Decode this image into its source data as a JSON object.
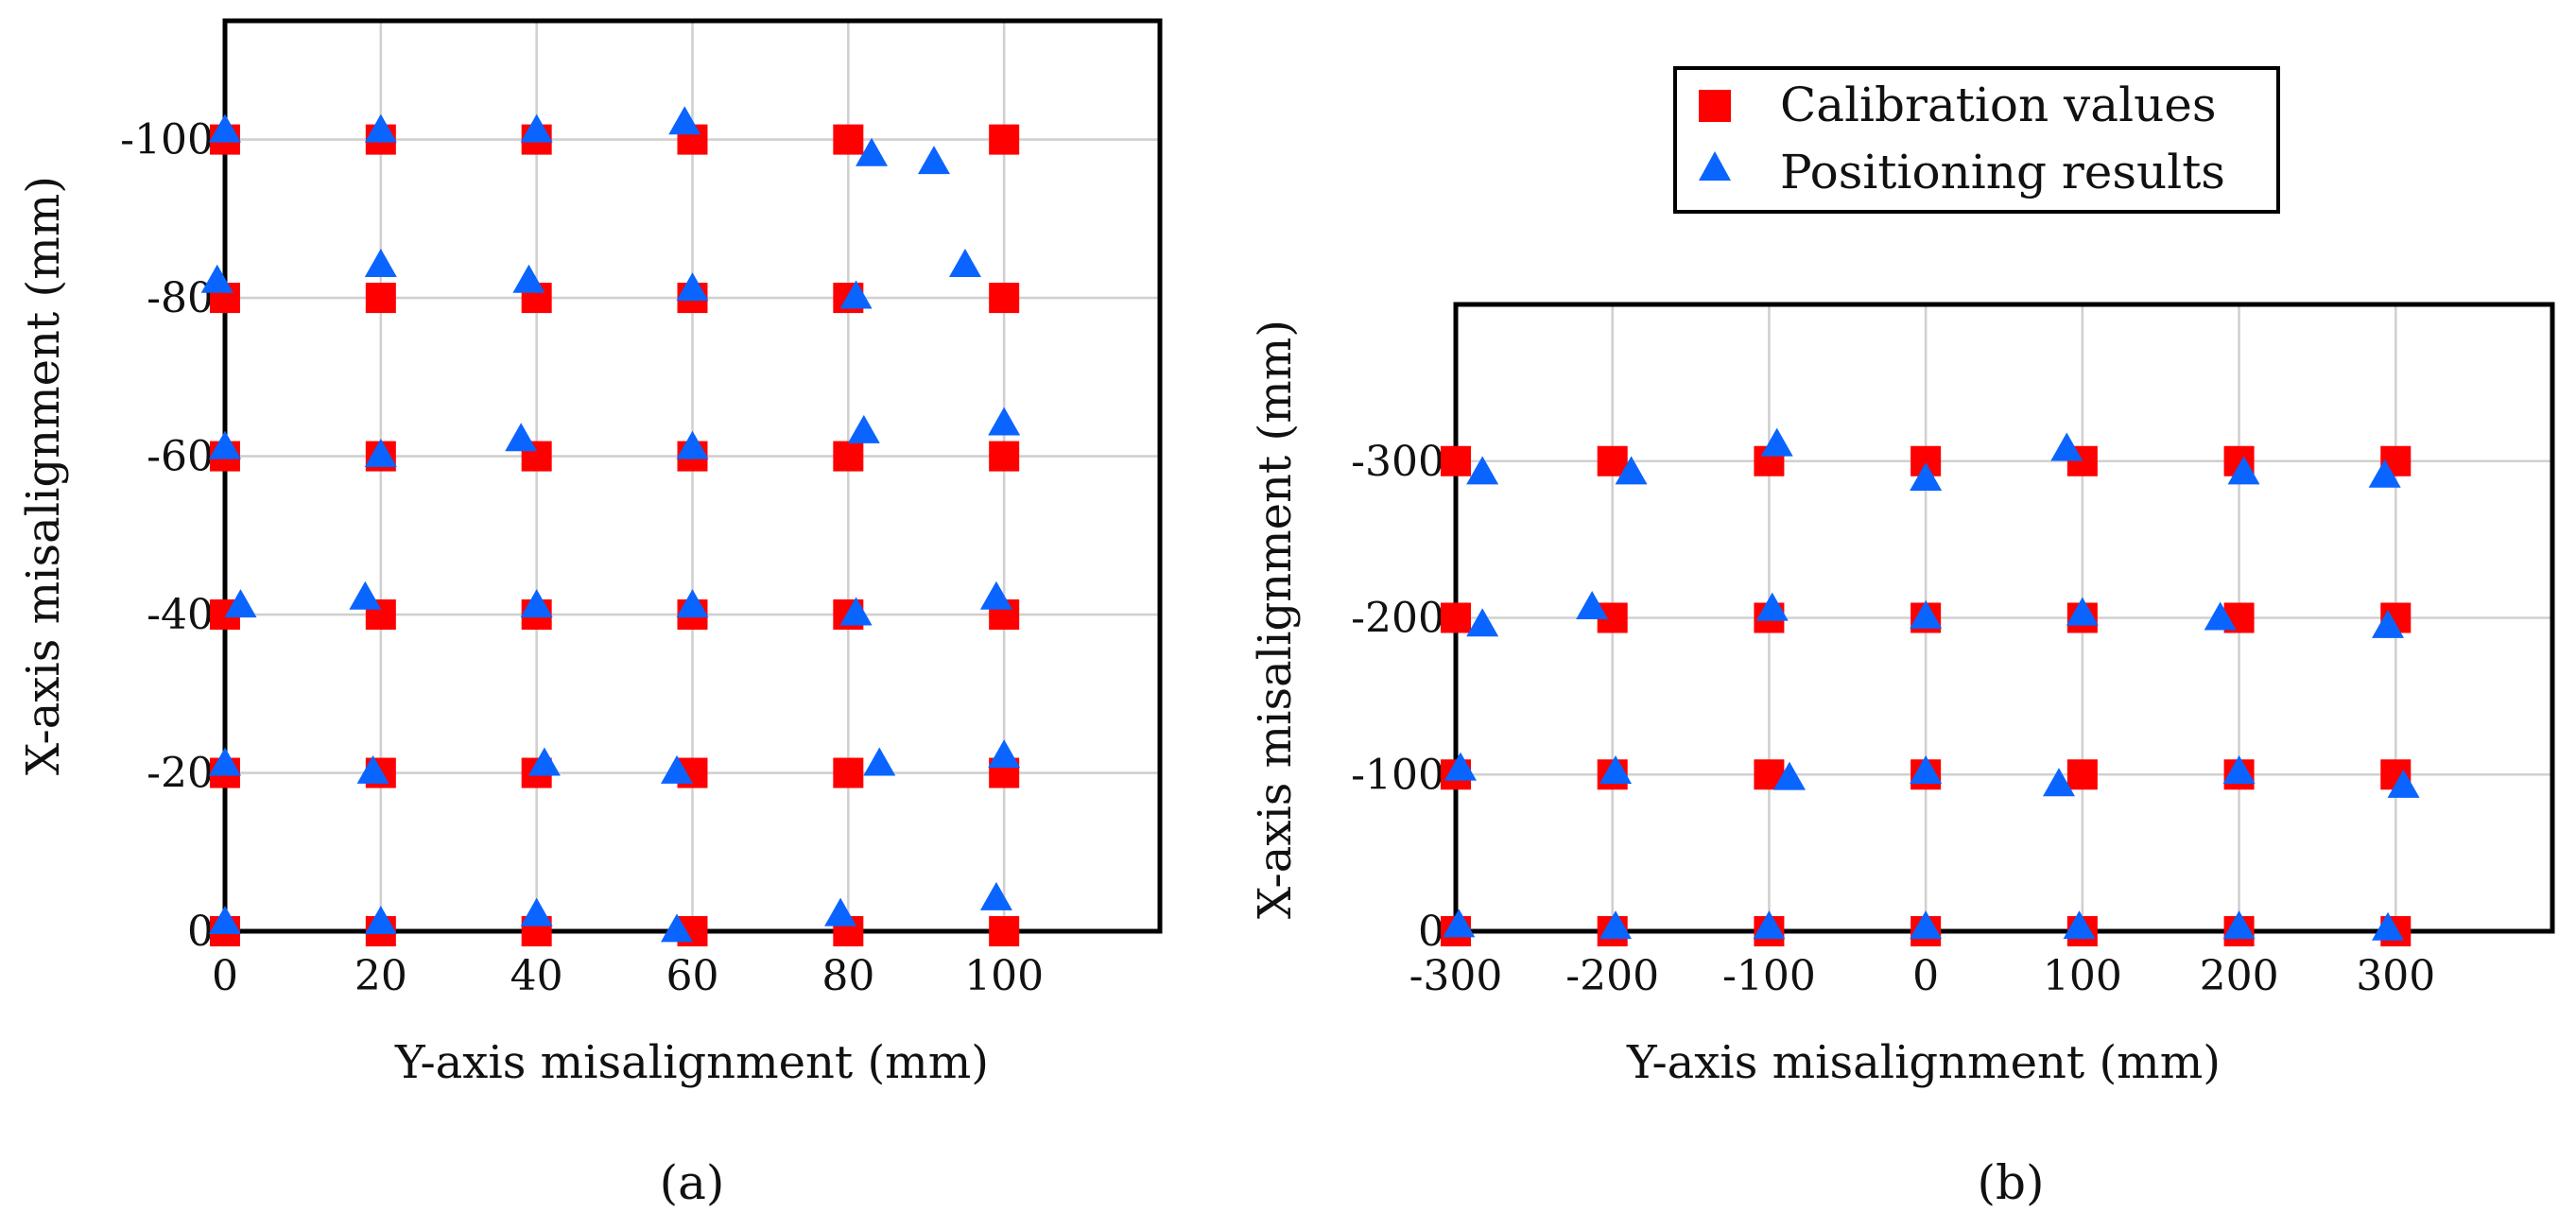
{
  "colors": {
    "calibration": "#ff0000",
    "positioning": "#0a64ff"
  },
  "legend": {
    "items": [
      {
        "label": "Calibration values",
        "marker": "square",
        "color": "#ff0000"
      },
      {
        "label": "Positioning results",
        "marker": "triangle",
        "color": "#0a64ff"
      }
    ],
    "placement": "top-right"
  },
  "chart_data": [
    {
      "id": "a",
      "type": "scatter",
      "caption": "(a)",
      "xlabel": "Y-axis misalignment (mm)",
      "ylabel": "X-axis misalignment (mm)",
      "xlim": [
        0,
        120
      ],
      "ylim": [
        0,
        -115
      ],
      "xticks": [
        0,
        20,
        40,
        60,
        80,
        100
      ],
      "xtick_labels": [
        "0",
        "20",
        "40",
        "60",
        "80",
        "100"
      ],
      "yticks": [
        0,
        -20,
        -40,
        -60,
        -80,
        -100
      ],
      "ytick_labels": [
        "0",
        "-20",
        "-40",
        "-60",
        "-80",
        "-100"
      ],
      "grid": true,
      "series": [
        {
          "name": "Calibration values",
          "points": [
            [
              0,
              0
            ],
            [
              20,
              0
            ],
            [
              40,
              0
            ],
            [
              60,
              0
            ],
            [
              80,
              0
            ],
            [
              100,
              0
            ],
            [
              0,
              -20
            ],
            [
              20,
              -20
            ],
            [
              40,
              -20
            ],
            [
              60,
              -20
            ],
            [
              80,
              -20
            ],
            [
              100,
              -20
            ],
            [
              0,
              -40
            ],
            [
              20,
              -40
            ],
            [
              40,
              -40
            ],
            [
              60,
              -40
            ],
            [
              80,
              -40
            ],
            [
              100,
              -40
            ],
            [
              0,
              -60
            ],
            [
              20,
              -60
            ],
            [
              40,
              -60
            ],
            [
              60,
              -60
            ],
            [
              80,
              -60
            ],
            [
              100,
              -60
            ],
            [
              0,
              -80
            ],
            [
              20,
              -80
            ],
            [
              40,
              -80
            ],
            [
              60,
              -80
            ],
            [
              80,
              -80
            ],
            [
              100,
              -80
            ],
            [
              0,
              -100
            ],
            [
              20,
              -100
            ],
            [
              40,
              -100
            ],
            [
              60,
              -100
            ],
            [
              80,
              -100
            ],
            [
              100,
              -100
            ]
          ]
        },
        {
          "name": "Positioning results",
          "points": [
            [
              0,
              -1
            ],
            [
              20,
              -1
            ],
            [
              40,
              -2
            ],
            [
              58,
              0
            ],
            [
              79,
              -2
            ],
            [
              99,
              -4
            ],
            [
              0,
              -21
            ],
            [
              19,
              -20
            ],
            [
              41,
              -21
            ],
            [
              58,
              -20
            ],
            [
              84,
              -21
            ],
            [
              100,
              -22
            ],
            [
              2,
              -41
            ],
            [
              18,
              -42
            ],
            [
              40,
              -41
            ],
            [
              60,
              -41
            ],
            [
              81,
              -40
            ],
            [
              99,
              -42
            ],
            [
              0,
              -61
            ],
            [
              20,
              -60
            ],
            [
              38,
              -62
            ],
            [
              60,
              -61
            ],
            [
              82,
              -63
            ],
            [
              100,
              -64
            ],
            [
              -1,
              -82
            ],
            [
              20,
              -84
            ],
            [
              39,
              -82
            ],
            [
              60,
              -81
            ],
            [
              81,
              -80
            ],
            [
              95,
              -84
            ],
            [
              0,
              -101
            ],
            [
              20,
              -101
            ],
            [
              40,
              -101
            ],
            [
              59,
              -102
            ],
            [
              83,
              -98
            ],
            [
              91,
              -97
            ]
          ]
        }
      ]
    },
    {
      "id": "b",
      "type": "scatter",
      "caption": "(b)",
      "xlabel": "Y-axis misalignment (mm)",
      "ylabel": "X-axis misalignment (mm)",
      "xlim": [
        -300,
        400
      ],
      "ylim": [
        0,
        -400
      ],
      "xticks": [
        -300,
        -200,
        -100,
        0,
        100,
        200,
        300
      ],
      "xtick_labels": [
        "-300",
        "-200",
        "-100",
        "0",
        "100",
        "200",
        "300"
      ],
      "yticks": [
        0,
        -100,
        -200,
        -300
      ],
      "ytick_labels": [
        "0",
        "-100",
        "-200",
        "-300"
      ],
      "grid": true,
      "series": [
        {
          "name": "Calibration values",
          "points": [
            [
              -300,
              0
            ],
            [
              -200,
              0
            ],
            [
              -100,
              0
            ],
            [
              0,
              0
            ],
            [
              100,
              0
            ],
            [
              200,
              0
            ],
            [
              300,
              0
            ],
            [
              -300,
              -100
            ],
            [
              -200,
              -100
            ],
            [
              -100,
              -100
            ],
            [
              0,
              -100
            ],
            [
              100,
              -100
            ],
            [
              200,
              -100
            ],
            [
              300,
              -100
            ],
            [
              -300,
              -200
            ],
            [
              -200,
              -200
            ],
            [
              -100,
              -200
            ],
            [
              0,
              -200
            ],
            [
              100,
              -200
            ],
            [
              200,
              -200
            ],
            [
              300,
              -200
            ],
            [
              -300,
              -300
            ],
            [
              -200,
              -300
            ],
            [
              -100,
              -300
            ],
            [
              0,
              -300
            ],
            [
              100,
              -300
            ],
            [
              200,
              -300
            ],
            [
              300,
              -300
            ]
          ]
        },
        {
          "name": "Positioning results",
          "points": [
            [
              -298,
              -3
            ],
            [
              -198,
              -2
            ],
            [
              -100,
              -2
            ],
            [
              0,
              -2
            ],
            [
              98,
              -2
            ],
            [
              200,
              -2
            ],
            [
              295,
              -1
            ],
            [
              -297,
              -103
            ],
            [
              -198,
              -101
            ],
            [
              -87,
              -97
            ],
            [
              0,
              -101
            ],
            [
              85,
              -93
            ],
            [
              200,
              -101
            ],
            [
              305,
              -92
            ],
            [
              -283,
              -195
            ],
            [
              -213,
              -206
            ],
            [
              -98,
              -205
            ],
            [
              0,
              -200
            ],
            [
              100,
              -202
            ],
            [
              188,
              -199
            ],
            [
              295,
              -194
            ],
            [
              -283,
              -292
            ],
            [
              -188,
              -292
            ],
            [
              -95,
              -310
            ],
            [
              0,
              -288
            ],
            [
              90,
              -307
            ],
            [
              203,
              -292
            ],
            [
              293,
              -290
            ]
          ]
        }
      ]
    }
  ]
}
